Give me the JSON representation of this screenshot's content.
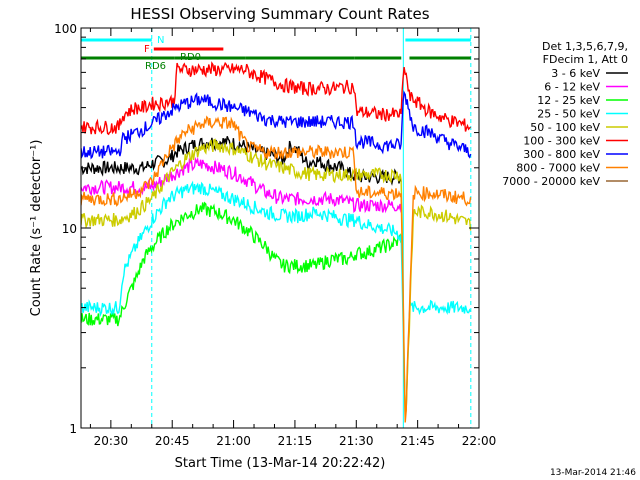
{
  "chart_data": {
    "type": "line",
    "title": "HESSI Observing Summary Count Rates",
    "xlabel": "Start Time (13-Mar-14 20:22:42)",
    "ylabel": "Count Rate (s⁻¹ detector⁻¹)",
    "y_scale": "log",
    "ylim": [
      1,
      100
    ],
    "xlim_minutes_after_2000": [
      22.7,
      120
    ],
    "x_ticks": [
      {
        "t": 30,
        "label": "20:30"
      },
      {
        "t": 45,
        "label": "20:45"
      },
      {
        "t": 60,
        "label": "21:00"
      },
      {
        "t": 75,
        "label": "21:15"
      },
      {
        "t": 90,
        "label": "21:30"
      },
      {
        "t": 105,
        "label": "21:45"
      },
      {
        "t": 120,
        "label": "22:00"
      }
    ],
    "y_ticks": [
      {
        "v": 1,
        "label": "1"
      },
      {
        "v": 10,
        "label": "10"
      },
      {
        "v": 100,
        "label": "100"
      }
    ],
    "legend_header": [
      "Det 1,3,5,6,7,9,",
      "FDecim 1, Att 0"
    ],
    "legend_placement": "right",
    "timestamp": "13-Mar-2014 21:46",
    "vertical_markers": [
      {
        "t": 40,
        "style": "dashed"
      },
      {
        "t": 101.5,
        "style": "solid"
      },
      {
        "t": 118,
        "style": "dashed"
      }
    ],
    "flag_bars": [
      {
        "label": "N",
        "color": "#00ffff",
        "segments": [
          [
            22.7,
            40
          ],
          [
            102,
            118
          ]
        ],
        "level": 0
      },
      {
        "label": "F",
        "color": "#ff0000",
        "segments": [
          [
            40.5,
            57.5
          ]
        ],
        "level": 1
      },
      {
        "label": "RD0",
        "color": "#008000",
        "segments": [
          [
            22.7,
            45.5
          ],
          [
            45.5,
            63
          ],
          [
            63,
            89.5
          ],
          [
            89.5,
            101
          ],
          [
            103,
            118
          ]
        ],
        "level": 2
      }
    ],
    "flag_label_rd6": "RD6",
    "series": [
      {
        "name": "3 - 6 keV",
        "color": "#000000",
        "x": [
          22.7,
          38,
          40,
          42,
          44,
          46,
          50,
          54,
          58,
          62,
          64,
          66,
          70,
          72,
          74,
          76,
          78,
          80,
          82,
          86,
          88,
          90,
          92,
          96,
          100,
          101
        ],
        "y": [
          20,
          20,
          21,
          21.5,
          22,
          24,
          26,
          27,
          27,
          26,
          25,
          24,
          23,
          22,
          26,
          24,
          21,
          22,
          21,
          20,
          19,
          18,
          18,
          18,
          18,
          18
        ]
      },
      {
        "name": "6 - 12 keV",
        "color": "#ff00ff",
        "x": [
          22.7,
          32,
          34,
          36,
          38,
          40,
          42,
          44,
          48,
          52,
          56,
          60,
          64,
          68,
          72,
          76,
          80,
          84,
          88,
          90,
          92,
          96,
          100,
          101
        ],
        "y": [
          16,
          16,
          16,
          16,
          16,
          16,
          17,
          18,
          20,
          21,
          20,
          19,
          17,
          15,
          14,
          14,
          14,
          14,
          13.5,
          13,
          13,
          13,
          13,
          13
        ]
      },
      {
        "name": "12 - 25 keV",
        "color": "#00ff00",
        "x": [
          22.7,
          32,
          34,
          36,
          38,
          40,
          42,
          44,
          48,
          52,
          56,
          60,
          64,
          68,
          70,
          72,
          76,
          80,
          84,
          88,
          90,
          92,
          96,
          100,
          101
        ],
        "y": [
          3.5,
          3.5,
          4.5,
          5.5,
          7,
          8,
          9,
          10,
          11.5,
          12.5,
          12,
          11,
          9.5,
          8,
          7,
          6.5,
          6.5,
          6.5,
          7,
          7,
          7.5,
          7.5,
          8,
          8.5,
          9
        ]
      },
      {
        "name": "25 - 50 keV",
        "color": "#00ffff",
        "x": [
          22.7,
          27,
          27.5,
          32,
          33,
          36,
          40,
          44,
          48,
          52,
          56,
          60,
          64,
          68,
          72,
          76,
          80,
          84,
          88,
          90,
          92,
          96,
          100,
          101,
          102,
          103,
          108,
          112,
          118
        ],
        "y": [
          4,
          4,
          4,
          4,
          6,
          8,
          11,
          14,
          15.5,
          16,
          15,
          14,
          13,
          12,
          11.5,
          11.5,
          12,
          11.5,
          11,
          11,
          10.5,
          10,
          9.5,
          9,
          1,
          4,
          4,
          4,
          4
        ]
      },
      {
        "name": "50 - 100 keV",
        "color": "#cccc00",
        "x": [
          22.7,
          32,
          36,
          40,
          44,
          48,
          52,
          56,
          60,
          64,
          68,
          72,
          76,
          80,
          84,
          88,
          90,
          92,
          96,
          100,
          101,
          102,
          104,
          108,
          112,
          118
        ],
        "y": [
          11,
          11,
          12,
          14,
          18,
          22,
          25,
          26,
          25,
          23,
          21,
          20,
          19,
          18.5,
          18.5,
          18.5,
          18.5,
          18.5,
          18.5,
          18.5,
          18.5,
          1,
          12,
          12,
          11.5,
          10.5
        ]
      },
      {
        "name": "100 - 300 keV",
        "color": "#ff0000",
        "x": [
          22.7,
          32,
          33,
          36,
          38,
          40,
          42,
          44,
          45.5,
          46,
          50,
          54,
          58,
          62,
          63,
          64,
          68,
          72,
          76,
          80,
          84,
          88,
          89.5,
          90,
          92,
          96,
          100,
          101,
          101.5,
          102,
          103,
          104,
          108,
          112,
          118
        ],
        "y": [
          32,
          32,
          37,
          40,
          40,
          42,
          42,
          43,
          43,
          62,
          62,
          62,
          62,
          62,
          62,
          60,
          56,
          52,
          50,
          50,
          50,
          51,
          51,
          38,
          38,
          37,
          37,
          37,
          60,
          62,
          45,
          44,
          38,
          35,
          32
        ]
      },
      {
        "name": "300 - 800 keV",
        "color": "#0000ff",
        "x": [
          22.7,
          32,
          33,
          36,
          40,
          44,
          48,
          52,
          56,
          60,
          64,
          68,
          72,
          76,
          80,
          84,
          88,
          89.5,
          90,
          92,
          96,
          100,
          101,
          101.5,
          102,
          104,
          108,
          112,
          118
        ],
        "y": [
          24,
          24,
          28,
          30,
          33,
          38,
          42,
          44,
          42,
          40,
          38,
          35,
          34,
          34,
          34,
          34,
          34,
          34,
          27,
          27,
          26,
          26,
          26,
          46,
          46,
          32,
          30,
          27,
          24
        ]
      },
      {
        "name": "800 - 7000 keV",
        "color": "#ff8000",
        "x": [
          22.7,
          32,
          36,
          40,
          44,
          48,
          52,
          56,
          60,
          62,
          64,
          68,
          72,
          76,
          80,
          84,
          88,
          89.5,
          90,
          92,
          96,
          100,
          101,
          102,
          104,
          108,
          112,
          118
        ],
        "y": [
          14,
          14,
          15,
          17,
          24,
          30,
          33,
          34,
          33,
          28,
          25,
          24,
          24,
          24,
          24,
          24,
          24,
          24,
          15,
          15,
          15,
          15,
          15,
          1,
          15,
          15,
          14.5,
          14
        ]
      },
      {
        "name": "7000 - 20000 keV",
        "color": "#996633",
        "x": [],
        "y": []
      }
    ]
  }
}
